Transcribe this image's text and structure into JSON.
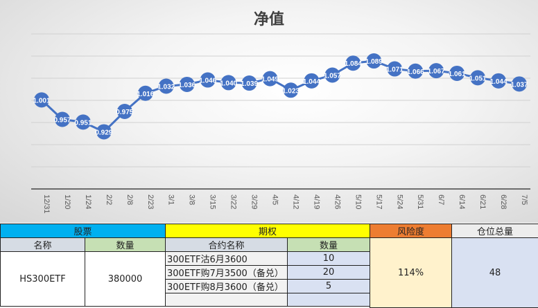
{
  "chart_data": {
    "type": "line",
    "title": "净值",
    "x": [
      "12/31",
      "1/20",
      "1/24",
      "2/2",
      "2/8",
      "2/23",
      "3/1",
      "3/8",
      "3/15",
      "3/22",
      "3/29",
      "4/5",
      "4/12",
      "4/19",
      "4/26",
      "5/10",
      "5/17",
      "5/24",
      "5/31",
      "6/7",
      "6/14",
      "6/21",
      "6/28",
      "7/5"
    ],
    "series": [
      {
        "name": "净值",
        "values": [
          1.001,
          0.957,
          0.951,
          0.929,
          0.975,
          1.016,
          1.032,
          1.036,
          1.046,
          1.04,
          1.039,
          1.049,
          1.023,
          1.044,
          1.057,
          1.084,
          1.089,
          1.071,
          1.066,
          1.067,
          1.061,
          1.051,
          1.044,
          1.037
        ],
        "color": "#4472C4"
      }
    ],
    "ylim": [
      0.8,
      1.15
    ],
    "grid": true,
    "legend": "none"
  },
  "table": {
    "stock_header": "股票",
    "option_header": "期权",
    "risk_header": "风险度",
    "position_header": "仓位总量",
    "stock_name_col": "名称",
    "stock_qty_col": "数量",
    "contract_col": "合约名称",
    "option_qty_col": "数量",
    "stock_name": "HS300ETF",
    "stock_qty": "380000",
    "options": [
      {
        "name": "300ETF沽6月3600",
        "qty": "10"
      },
      {
        "name": "300ETF购7月3500（备兑）",
        "qty": "20"
      },
      {
        "name": "300ETF购8月3600（备兑）",
        "qty": "5"
      }
    ],
    "risk": "114%",
    "position": "48",
    "colors": {
      "stock": "#00B0F0",
      "option": "#FFFF00",
      "risk": "#ED7D31",
      "position": "#EDEDED",
      "sub": "#D6DCE4",
      "subgreen": "#C6E0B4",
      "riskbody": "#FFF2CC",
      "posbody": "#D9E1F2"
    }
  }
}
